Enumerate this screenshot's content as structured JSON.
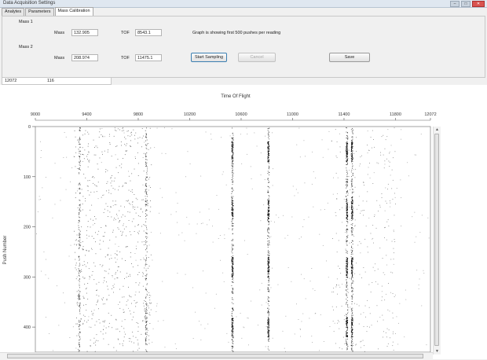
{
  "window": {
    "title": "Data Acquisition Settings"
  },
  "tabs": [
    {
      "label": "Analytes"
    },
    {
      "label": "Parameters"
    },
    {
      "label": "Mass Calibration"
    }
  ],
  "calibration": {
    "mass1": {
      "group_label": "Mass 1",
      "mass_label": "Mass",
      "mass_value": "132.905",
      "tof_label": "TOF",
      "tof_value": "8543.1"
    },
    "mass2": {
      "group_label": "Mass 2",
      "mass_label": "Mass",
      "mass_value": "208.974",
      "tof_label": "TOF",
      "tof_value": "11475.1"
    },
    "info_text": "Graph is showing first 500 pushes per reading",
    "start_button": "Start Sampling",
    "cancel_button": "Cancel",
    "save_button": "Save"
  },
  "status": {
    "left": "12072",
    "right": "116"
  },
  "chart_data": {
    "type": "scatter",
    "title": "Time Of Flight",
    "xlabel": "",
    "ylabel": "Push Number",
    "x_ticks": [
      9000,
      9400,
      9800,
      10200,
      10600,
      11000,
      11400,
      11800,
      12072
    ],
    "x_tick_labels": [
      "9000",
      "9400",
      "9800",
      "10200",
      "10600",
      "11000",
      "11400",
      "11800",
      "12072"
    ],
    "y_ticks": [
      0,
      100,
      200,
      300,
      400
    ],
    "y_tick_labels": [
      "0",
      "100",
      "200",
      "300",
      "400"
    ],
    "xlim": [
      9000,
      12072
    ],
    "ylim": [
      0,
      450
    ],
    "y_inverted": true,
    "dense_columns_tof": [
      9340,
      9860,
      10530,
      10810,
      11420,
      11460
    ],
    "burst_rows": [
      50,
      165,
      280,
      400
    ],
    "grid": false,
    "legend": "none"
  }
}
